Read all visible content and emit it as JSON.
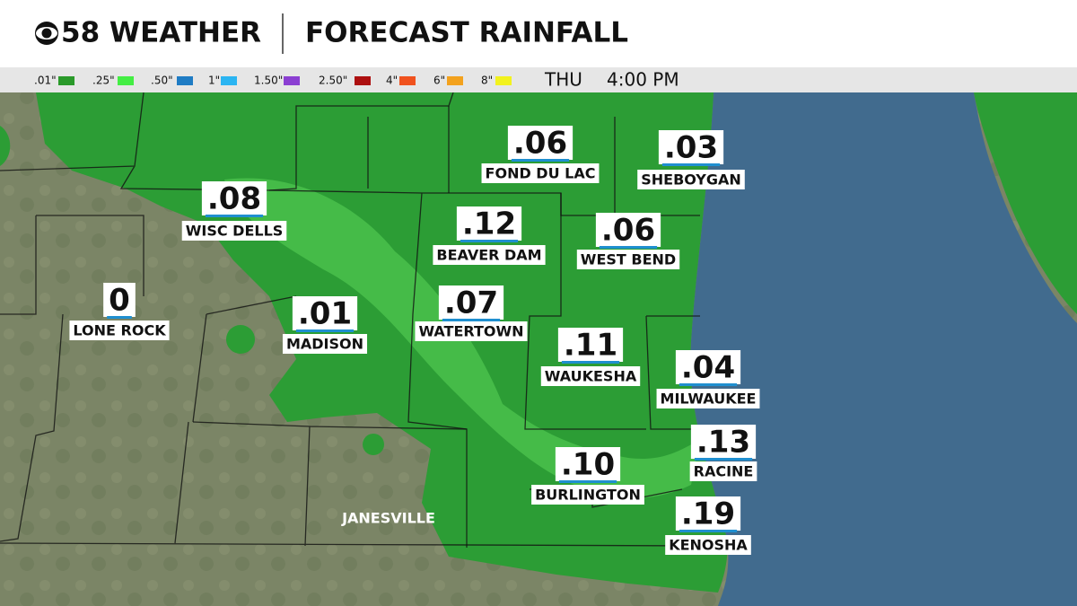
{
  "header": {
    "brand": "58 WEATHER",
    "title": "FORECAST RAINFALL"
  },
  "legend": {
    "items": [
      {
        "label": ".01\"",
        "color": "#2a9a2a"
      },
      {
        "label": ".25\"",
        "color": "#44ee44"
      },
      {
        "label": ".50\"",
        "color": "#1f7cc4"
      },
      {
        "label": "1\"",
        "color": "#2bb5f2"
      },
      {
        "label": "1.50\"",
        "color": "#8b3fd2"
      },
      {
        "label": "2.50\"",
        "color": "#ad1010"
      },
      {
        "label": "4\"",
        "color": "#f0521e"
      },
      {
        "label": "6\"",
        "color": "#f3a21e"
      },
      {
        "label": "8\"",
        "color": "#f2f21e"
      }
    ],
    "day": "THU",
    "time": "4:00 PM"
  },
  "cities": [
    {
      "name": "FOND DU LAC",
      "value": ".06"
    },
    {
      "name": "SHEBOYGAN",
      "value": ".03"
    },
    {
      "name": "WISC DELLS",
      "value": ".08"
    },
    {
      "name": "BEAVER DAM",
      "value": ".12"
    },
    {
      "name": "WEST BEND",
      "value": ".06"
    },
    {
      "name": "LONE ROCK",
      "value": "0"
    },
    {
      "name": "MADISON",
      "value": ".01"
    },
    {
      "name": "WATERTOWN",
      "value": ".07"
    },
    {
      "name": "WAUKESHA",
      "value": ".11"
    },
    {
      "name": "MILWAUKEE",
      "value": ".04"
    },
    {
      "name": "RACINE",
      "value": ".13"
    },
    {
      "name": "BURLINGTON",
      "value": ".10"
    },
    {
      "name": "KENOSHA",
      "value": ".19"
    },
    {
      "name": "JANESVILLE"
    }
  ]
}
